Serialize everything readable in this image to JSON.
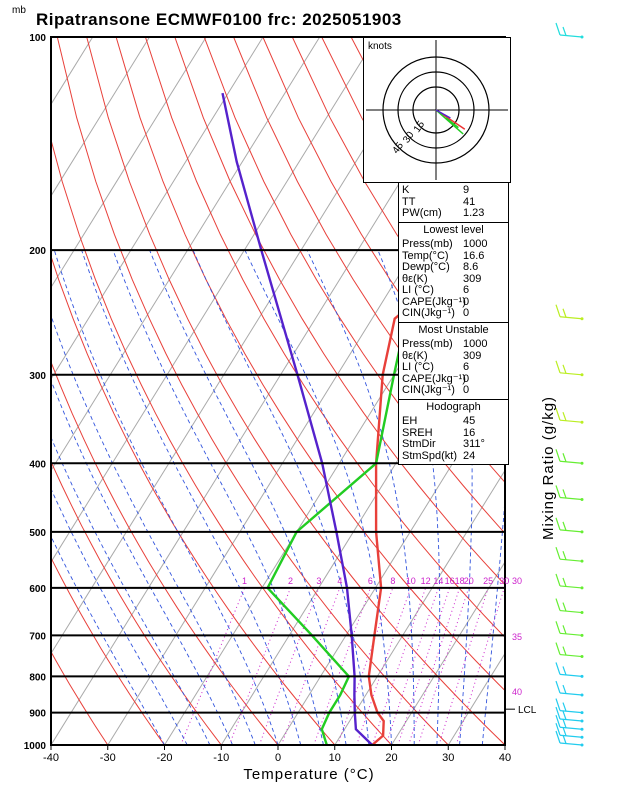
{
  "title": "Ripatransone ECMWF0100 frc: 2025051903",
  "axes": {
    "y_unit": "mb",
    "x_label": "Temperature (°C)",
    "mixing_label": "Mixing Ratio (g/kg)"
  },
  "hodograph": {
    "unit": "knots",
    "rings": [
      "15",
      "30",
      "45"
    ]
  },
  "indices": {
    "general": [
      {
        "k": "K",
        "v": "9"
      },
      {
        "k": "TT",
        "v": "41"
      },
      {
        "k": "PW(cm)",
        "v": "1.23"
      }
    ],
    "lowest": {
      "header": "Lowest level",
      "rows": [
        {
          "k": "Press(mb)",
          "v": "1000"
        },
        {
          "k": "Temp(°C)",
          "v": "16.6"
        },
        {
          "k": "Dewp(°C)",
          "v": "8.6"
        },
        {
          "k": "θε(K)",
          "v": "309"
        },
        {
          "k": "LI (°C)",
          "v": "6"
        },
        {
          "k": "CAPE(Jkg⁻¹)",
          "v": "0"
        },
        {
          "k": "CIN(Jkg⁻¹)",
          "v": "0"
        }
      ]
    },
    "unstable": {
      "header": "Most Unstable",
      "rows": [
        {
          "k": "Press(mb)",
          "v": "1000"
        },
        {
          "k": "θε(K)",
          "v": "309"
        },
        {
          "k": "LI (°C)",
          "v": "6"
        },
        {
          "k": "CAPE(Jkg⁻¹)",
          "v": "0"
        },
        {
          "k": "CIN(Jkg⁻¹)",
          "v": "0"
        }
      ]
    },
    "hodograph": {
      "header": "Hodograph",
      "rows": [
        {
          "k": "EH",
          "v": "45"
        },
        {
          "k": "SREH",
          "v": "16"
        },
        {
          "k": "StmDir",
          "v": "311°"
        },
        {
          "k": "StmSpd(kt)",
          "v": "24"
        }
      ]
    }
  },
  "colors": {
    "temp": "#e8403a",
    "dewp": "#22cc22",
    "parcel": "#5522cc",
    "isotherm": "#aaaaaa",
    "dryadiabat": "#e8403a",
    "moistadiabat": "#3355dd",
    "mixing": "#cc22cc",
    "pressure": "#000000"
  },
  "chart_data": {
    "type": "line",
    "title": "Ripatransone ECMWF0100 frc: 2025051903",
    "xlabel": "Temperature (°C)",
    "ylabel": "mb",
    "xlim": [
      -40,
      40
    ],
    "ylim": [
      1000,
      100
    ],
    "y_scale": "log",
    "x_ticks": [
      "-40",
      "-30",
      "-20",
      "-10",
      "0",
      "10",
      "20",
      "30",
      "40"
    ],
    "y_ticks": [
      "100",
      "200",
      "300",
      "400",
      "500",
      "600",
      "700",
      "800",
      "900",
      "1000"
    ],
    "mixing_ratio_labels": [
      "1",
      "2",
      "3",
      "4",
      "6",
      "8",
      "10",
      "12",
      "14",
      "16",
      "18",
      "20",
      "25",
      "30"
    ],
    "theta_e_labels": [
      "30",
      "35",
      "40"
    ],
    "lcl_label": "LCL",
    "lcl_pressure": 890,
    "series": [
      {
        "name": "temp",
        "points": [
          [
            1000,
            16.6
          ],
          [
            970,
            17.5
          ],
          [
            925,
            16
          ],
          [
            900,
            14
          ],
          [
            850,
            11
          ],
          [
            800,
            8.5
          ],
          [
            700,
            5
          ],
          [
            600,
            1
          ],
          [
            500,
            -6
          ],
          [
            400,
            -13.5
          ],
          [
            300,
            -22
          ],
          [
            250,
            -26
          ],
          [
            200,
            -19
          ],
          [
            150,
            -9
          ],
          [
            100,
            5
          ]
        ]
      },
      {
        "name": "dewp",
        "points": [
          [
            1000,
            8.6
          ],
          [
            950,
            6
          ],
          [
            900,
            5.5
          ],
          [
            850,
            5.5
          ],
          [
            800,
            5
          ],
          [
            700,
            -6
          ],
          [
            600,
            -19
          ],
          [
            500,
            -20
          ],
          [
            400,
            -13.5
          ],
          [
            300,
            -20
          ],
          [
            250,
            -24
          ],
          [
            200,
            -21
          ],
          [
            150,
            -17
          ],
          [
            100,
            -13
          ]
        ]
      },
      {
        "name": "parcel",
        "points": [
          [
            1000,
            16.6
          ],
          [
            950,
            12
          ],
          [
            900,
            10
          ],
          [
            850,
            8
          ],
          [
            800,
            6
          ],
          [
            700,
            1
          ],
          [
            600,
            -5
          ],
          [
            500,
            -13
          ],
          [
            400,
            -23
          ],
          [
            300,
            -37
          ],
          [
            250,
            -46
          ],
          [
            200,
            -57
          ],
          [
            150,
            -71
          ],
          [
            120,
            -81
          ]
        ]
      }
    ],
    "hodograph_vectors": [
      [
        0.36,
        -0.24
      ],
      [
        0.28,
        -0.22
      ],
      [
        0.34,
        -0.3
      ],
      [
        0.18,
        -0.1
      ]
    ],
    "wind_barbs_pressure": [
      1000,
      975,
      950,
      925,
      900,
      850,
      800,
      750,
      700,
      650,
      600,
      550,
      500,
      450,
      400,
      350,
      300,
      250,
      100
    ]
  }
}
